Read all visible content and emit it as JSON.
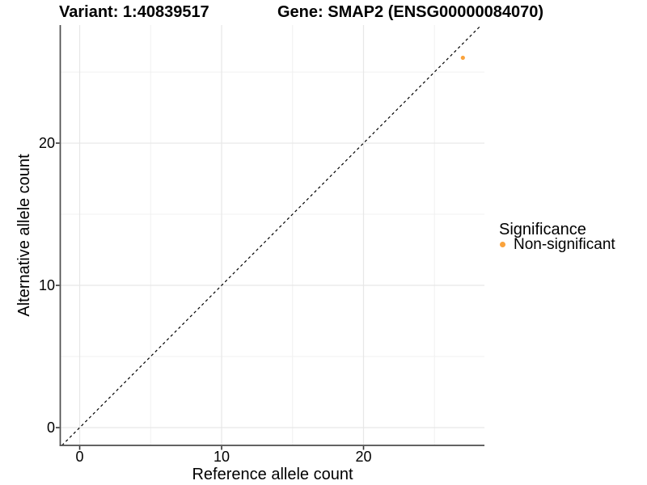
{
  "chart_data": {
    "type": "scatter",
    "titles": {
      "variant": "Variant: 1:40839517",
      "gene": "Gene: SMAP2 (ENSG00000084070)"
    },
    "xlabel": "Reference allele count",
    "ylabel": "Alternative allele count",
    "x_ticks": [
      0,
      10,
      20
    ],
    "y_ticks": [
      0,
      10,
      20
    ],
    "minor_ticks": [
      5,
      15,
      25
    ],
    "xlim": [
      -1.37,
      28.52
    ],
    "ylim": [
      -1.25,
      28.3
    ],
    "grid": "major and minor every 5 units, light gray, white background",
    "points": [
      {
        "x": 27,
        "y": 26,
        "series": "Non-significant"
      }
    ],
    "identity_line": {
      "slope": 1,
      "intercept": 0,
      "style": "dashed",
      "color": "#000000"
    },
    "legend": {
      "title": "Significance",
      "position": "right",
      "items": [
        {
          "label": "Non-significant",
          "color": "#FAA33C"
        }
      ]
    },
    "colors": {
      "point": "#FAA33C",
      "axis_line": "#4d4d4d",
      "tick_mark": "#333333",
      "grid_major": "#e7e7e7",
      "grid_minor": "#f0f0f0",
      "text": "#000000"
    }
  }
}
